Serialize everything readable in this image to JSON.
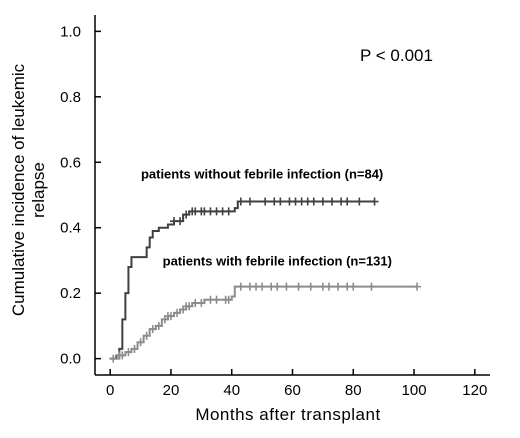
{
  "chart_data": {
    "type": "line",
    "subtype": "step",
    "xlabel": "Months after transplant",
    "ylabel_line1": "Cumulative incidence of leukemic",
    "ylabel_line2": "relapse",
    "xlim": [
      -5,
      125
    ],
    "ylim": [
      -0.05,
      1.05
    ],
    "xticks": [
      0,
      20,
      40,
      60,
      80,
      100,
      120
    ],
    "yticks": [
      0.0,
      0.2,
      0.4,
      0.6,
      0.8,
      1.0
    ],
    "xtick_labels": [
      "0",
      "20",
      "40",
      "60",
      "80",
      "100",
      "120"
    ],
    "ytick_labels": [
      "0.0",
      "0.2",
      "0.4",
      "0.6",
      "0.8",
      "1.0"
    ],
    "annotation": "P < 0.001",
    "grid": false,
    "series": [
      {
        "name": "patients without febrile infection (n=84)",
        "color": "#404040",
        "points": [
          [
            0,
            0.0
          ],
          [
            2,
            0.01
          ],
          [
            3,
            0.03
          ],
          [
            4,
            0.12
          ],
          [
            5,
            0.2
          ],
          [
            6,
            0.28
          ],
          [
            7,
            0.31
          ],
          [
            12,
            0.34
          ],
          [
            13,
            0.37
          ],
          [
            14,
            0.39
          ],
          [
            16,
            0.4
          ],
          [
            19,
            0.41
          ],
          [
            21,
            0.42
          ],
          [
            24,
            0.44
          ],
          [
            26,
            0.45
          ],
          [
            41,
            0.46
          ],
          [
            42,
            0.48
          ],
          [
            87,
            0.48
          ]
        ],
        "censor_x": [
          21,
          23,
          25,
          27,
          28,
          30,
          31,
          33,
          35,
          37,
          39,
          43,
          46,
          51,
          54,
          56,
          59,
          61,
          63,
          65,
          67,
          70,
          73,
          76,
          78,
          82,
          87
        ]
      },
      {
        "name": "patients with febrile infection (n=131)",
        "color": "#8c8c8c",
        "points": [
          [
            0,
            0.0
          ],
          [
            3,
            0.01
          ],
          [
            5,
            0.02
          ],
          [
            7,
            0.03
          ],
          [
            9,
            0.05
          ],
          [
            11,
            0.07
          ],
          [
            13,
            0.09
          ],
          [
            15,
            0.1
          ],
          [
            17,
            0.12
          ],
          [
            19,
            0.13
          ],
          [
            21,
            0.14
          ],
          [
            23,
            0.15
          ],
          [
            25,
            0.16
          ],
          [
            27,
            0.17
          ],
          [
            31,
            0.18
          ],
          [
            40,
            0.19
          ],
          [
            41,
            0.22
          ],
          [
            101,
            0.22
          ]
        ],
        "censor_x": [
          1,
          3,
          4,
          6,
          8,
          10,
          12,
          14,
          16,
          18,
          19,
          20,
          22,
          24,
          25,
          26,
          28,
          30,
          33,
          35,
          38,
          39,
          43,
          46,
          48,
          50,
          53,
          55,
          58,
          62,
          66,
          70,
          72,
          75,
          78,
          80,
          86,
          101
        ]
      }
    ],
    "series_labels": [
      {
        "text": "patients without febrile infection (n=84)",
        "x": 50,
        "y": 0.55
      },
      {
        "text": "patients with febrile infection (n=131)",
        "x": 55,
        "y": 0.285
      }
    ]
  }
}
